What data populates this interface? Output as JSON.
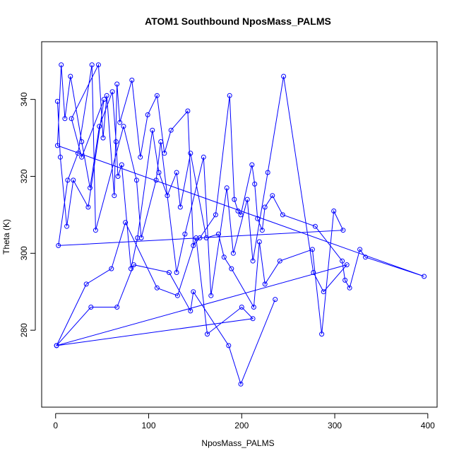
{
  "chart_data": {
    "type": "line",
    "title": "ATOM1 Southbound NposMass_PALMS",
    "xlabel": "NposMass_PALMS",
    "ylabel": "Theta (K)",
    "xlim": [
      -15,
      410
    ],
    "ylim": [
      260,
      355
    ],
    "x_ticks": [
      0,
      100,
      200,
      300,
      400
    ],
    "y_ticks": [
      280,
      300,
      320,
      340
    ],
    "grid": false,
    "legend": "none",
    "series_color": "#0000ff",
    "markers": "open-circle",
    "x": [
      2,
      5,
      12,
      19,
      35,
      52,
      28,
      17,
      46,
      51,
      55,
      63,
      66,
      69,
      82,
      91,
      99,
      109,
      117,
      124,
      142,
      148,
      155,
      172,
      187,
      192,
      196,
      199,
      211,
      214,
      217,
      222,
      225,
      233,
      244,
      279,
      308,
      311,
      316,
      327,
      333,
      396,
      2,
      6,
      10,
      16,
      28,
      37,
      47,
      61,
      65,
      67,
      71,
      81,
      88,
      104,
      111,
      120,
      130,
      134,
      145,
      162,
      175,
      181,
      189,
      213,
      219,
      225,
      241,
      276,
      286,
      299,
      309,
      3,
      13,
      24,
      39,
      43,
      73,
      87,
      92,
      108,
      113,
      130,
      139,
      159,
      167,
      184,
      191,
      206,
      212,
      228,
      245,
      277,
      288,
      313,
      1,
      33,
      60,
      75,
      109,
      131,
      151,
      163,
      200,
      212,
      1,
      38,
      66,
      84,
      122,
      145,
      148,
      186,
      199,
      236
    ],
    "y": [
      339.5,
      325,
      307,
      319,
      312,
      340,
      325,
      335,
      349,
      330,
      341,
      315,
      344,
      334,
      345,
      325,
      336,
      341,
      326,
      332,
      337,
      302,
      304,
      310,
      341,
      314,
      311,
      310,
      323,
      318,
      309,
      306,
      312,
      315,
      310,
      307,
      298,
      293,
      291,
      301,
      299,
      294,
      328,
      349,
      335,
      346,
      329,
      317,
      333,
      342,
      329,
      320,
      323,
      296,
      304,
      332,
      321,
      315,
      321,
      312,
      326,
      304,
      305,
      299,
      296,
      286,
      303,
      292,
      298,
      301,
      279,
      311,
      306,
      302,
      319,
      326,
      349,
      306,
      333,
      319,
      304,
      319,
      329,
      295,
      305,
      325,
      289,
      317,
      300,
      314,
      298,
      321,
      346,
      295,
      290,
      297,
      276,
      292,
      296,
      308,
      291,
      289,
      304,
      279,
      286,
      283,
      276,
      286,
      286,
      297,
      295,
      285,
      290,
      276,
      266,
      288
    ]
  }
}
